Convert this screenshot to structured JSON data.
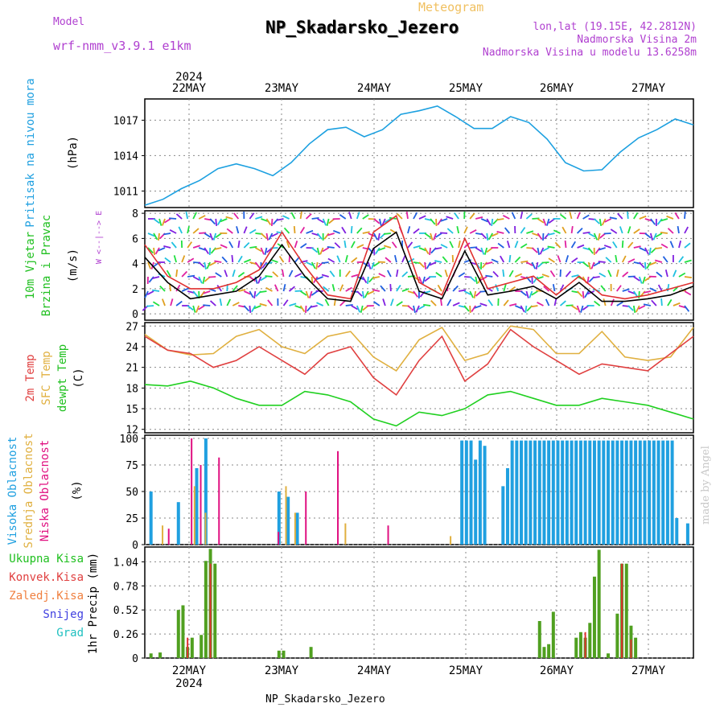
{
  "header": {
    "meteogram": "Meteogram",
    "title": "NP_Skadarsko_Jezero",
    "model_label": "Model",
    "model_name": "wrf-nmm_v3.9.1 e1km",
    "lonlat": "lon,lat (19.15E, 42.2812N)",
    "elevation": "Nadmorska Visina 2m",
    "model_elevation": "Nadmorska Visina u modelu 13.6258m"
  },
  "footer": {
    "station": "NP_Skadarsko_Jezero",
    "watermark": "made by Angel"
  },
  "colors": {
    "pressure": "#1ca0e0",
    "wind_speed": "#000000",
    "gust": "#e03030",
    "temp2m": "#e04040",
    "sfc_temp": "#e0b040",
    "dewpt": "#20d020",
    "high_cloud": "#20a0e0",
    "mid_cloud": "#e0b040",
    "low_cloud": "#e01080",
    "total_precip": "#50a020",
    "conv_precip": "#e03030"
  },
  "chart_data": [
    {
      "type": "line",
      "panel": "pressure",
      "title": "",
      "year_label": "2024",
      "day_labels": [
        "22MAY",
        "23MAY",
        "24MAY",
        "25MAY",
        "26MAY",
        "27MAY"
      ],
      "ylabel": [
        "Pritisak na nivou mora",
        "(hPa)"
      ],
      "yticks": [
        1011,
        1014,
        1017
      ],
      "ylim": [
        1009.6,
        1018.8
      ],
      "x_days": [
        0.0,
        0.2,
        0.4,
        0.6,
        0.8,
        1.0,
        1.2,
        1.4,
        1.6,
        1.8,
        2.0,
        2.2,
        2.4,
        2.6,
        2.8,
        3.0,
        3.2,
        3.4,
        3.6,
        3.8,
        4.0,
        4.2,
        4.4,
        4.6,
        4.8,
        5.0,
        5.2,
        5.4,
        5.6,
        5.8,
        6.0
      ],
      "series": [
        {
          "values": [
            1009.8,
            1010.3,
            1011.2,
            1011.9,
            1012.9,
            1013.3,
            1012.9,
            1012.3,
            1013.4,
            1015.0,
            1016.2,
            1016.4,
            1015.6,
            1016.2,
            1017.5,
            1017.8,
            1018.2,
            1017.3,
            1016.3,
            1016.3,
            1017.3,
            1016.8,
            1015.4,
            1013.4,
            1012.7,
            1012.8,
            1014.3,
            1015.5,
            1016.2,
            1017.1,
            1016.6
          ]
        }
      ]
    },
    {
      "type": "line",
      "panel": "wind",
      "ylabel": [
        "10m Vjetar",
        "Brzina i Pravac",
        "(m/s)"
      ],
      "compass": "W <--|--> E",
      "yticks": [
        0,
        2,
        4,
        6,
        8
      ],
      "ylim": [
        -0.5,
        8.2
      ],
      "x_days": [
        0.0,
        0.25,
        0.5,
        0.75,
        1.0,
        1.25,
        1.5,
        1.75,
        2.0,
        2.25,
        2.5,
        2.75,
        3.0,
        3.25,
        3.5,
        3.75,
        4.0,
        4.25,
        4.5,
        4.75,
        5.0,
        5.25,
        5.5,
        5.75,
        6.0
      ],
      "series": [
        {
          "name": "",
          "values": [
            4.5,
            2.5,
            1.2,
            1.5,
            1.8,
            3.0,
            5.5,
            3.0,
            1.2,
            1.0,
            5.2,
            6.5,
            1.8,
            1.2,
            5.0,
            1.5,
            1.8,
            2.2,
            1.2,
            2.5,
            1.0,
            1.0,
            1.2,
            1.5,
            2.2
          ]
        },
        {
          "name": "",
          "values": [
            5.5,
            3.0,
            2.0,
            2.0,
            2.5,
            3.5,
            6.5,
            3.8,
            1.5,
            1.2,
            6.5,
            7.8,
            2.5,
            1.5,
            6.0,
            2.0,
            2.5,
            3.0,
            1.5,
            3.0,
            1.5,
            1.2,
            1.5,
            2.0,
            2.5
          ]
        }
      ]
    },
    {
      "type": "line",
      "panel": "temperature",
      "ylabel": [
        "2m Temp",
        "SFC Temp",
        "dewpt Temp",
        "(C)"
      ],
      "yticks": [
        12,
        15,
        18,
        21,
        24,
        27
      ],
      "ylim": [
        11.5,
        27.5
      ],
      "x_days": [
        0.0,
        0.25,
        0.5,
        0.75,
        1.0,
        1.25,
        1.5,
        1.75,
        2.0,
        2.25,
        2.5,
        2.75,
        3.0,
        3.25,
        3.5,
        3.75,
        4.0,
        4.25,
        4.5,
        4.75,
        5.0,
        5.25,
        5.5,
        5.75,
        6.0
      ],
      "series": [
        {
          "name": "2m Temp",
          "values": [
            25.5,
            23.5,
            23.0,
            21.0,
            22.0,
            24.0,
            22.0,
            20.0,
            23.0,
            24.0,
            19.5,
            17.0,
            22.0,
            25.5,
            19.0,
            21.5,
            26.5,
            24.0,
            22.0,
            20.0,
            21.5,
            21.0,
            20.5,
            23.0,
            25.5
          ]
        },
        {
          "name": "SFC Temp",
          "values": [
            25.8,
            23.5,
            22.8,
            23.0,
            25.5,
            26.5,
            24.0,
            23.0,
            25.5,
            26.2,
            22.5,
            20.5,
            25.0,
            26.8,
            22.0,
            23.0,
            27.0,
            26.5,
            23.0,
            23.0,
            26.2,
            22.5,
            22.0,
            22.5,
            26.8
          ]
        },
        {
          "name": "dewpt Temp",
          "values": [
            18.5,
            18.3,
            19.0,
            18.0,
            16.5,
            15.5,
            15.5,
            17.5,
            17.0,
            16.0,
            13.5,
            12.5,
            14.5,
            14.0,
            15.0,
            17.0,
            17.5,
            16.5,
            15.5,
            15.5,
            16.5,
            16.0,
            15.5,
            14.5,
            13.5
          ]
        }
      ]
    },
    {
      "type": "bar",
      "panel": "clouds",
      "ylabel": [
        "Visoka Oblacnost",
        "Srednja Oblacnost",
        "Niska Oblacnost",
        "(%)"
      ],
      "yticks": [
        0,
        25,
        50,
        75,
        100
      ],
      "ylim": [
        0,
        103
      ],
      "series": [
        {
          "name": "Visoka Oblacnost",
          "points": [
            [
              0.05,
              50
            ],
            [
              0.35,
              40
            ],
            [
              0.55,
              72
            ],
            [
              0.65,
              100
            ],
            [
              1.45,
              50
            ],
            [
              1.55,
              45
            ],
            [
              1.65,
              30
            ],
            [
              3.45,
              98
            ],
            [
              3.5,
              98
            ],
            [
              3.55,
              98
            ],
            [
              3.6,
              80
            ],
            [
              3.65,
              98
            ],
            [
              3.7,
              93
            ],
            [
              3.9,
              55
            ],
            [
              3.95,
              72
            ],
            [
              4.0,
              98
            ],
            [
              4.05,
              98
            ],
            [
              4.1,
              98
            ],
            [
              4.15,
              98
            ],
            [
              4.2,
              98
            ],
            [
              4.25,
              98
            ],
            [
              4.3,
              98
            ],
            [
              4.35,
              98
            ],
            [
              4.4,
              98
            ],
            [
              4.45,
              98
            ],
            [
              4.5,
              98
            ],
            [
              4.55,
              98
            ],
            [
              4.6,
              98
            ],
            [
              4.65,
              98
            ],
            [
              4.7,
              98
            ],
            [
              4.75,
              98
            ],
            [
              4.8,
              98
            ],
            [
              4.85,
              98
            ],
            [
              4.9,
              98
            ],
            [
              4.95,
              98
            ],
            [
              5.0,
              98
            ],
            [
              5.05,
              98
            ],
            [
              5.1,
              98
            ],
            [
              5.15,
              98
            ],
            [
              5.2,
              98
            ],
            [
              5.25,
              98
            ],
            [
              5.3,
              98
            ],
            [
              5.35,
              98
            ],
            [
              5.4,
              98
            ],
            [
              5.45,
              98
            ],
            [
              5.5,
              98
            ],
            [
              5.55,
              98
            ],
            [
              5.6,
              98
            ],
            [
              5.65,
              98
            ],
            [
              5.7,
              98
            ],
            [
              5.75,
              98
            ],
            [
              5.8,
              25
            ],
            [
              5.92,
              20
            ]
          ]
        },
        {
          "name": "Srednja Oblacnost",
          "points": [
            [
              0.15,
              18
            ],
            [
              0.5,
              55
            ],
            [
              0.62,
              30
            ],
            [
              1.5,
              55
            ],
            [
              1.6,
              30
            ],
            [
              2.15,
              20
            ],
            [
              3.3,
              8
            ]
          ]
        },
        {
          "name": "Niska Oblacnost",
          "points": [
            [
              0.2,
              15
            ],
            [
              0.45,
              100
            ],
            [
              0.55,
              75
            ],
            [
              0.75,
              82
            ],
            [
              1.4,
              12
            ],
            [
              1.7,
              50
            ],
            [
              2.05,
              88
            ],
            [
              2.6,
              18
            ]
          ]
        }
      ]
    },
    {
      "type": "bar",
      "panel": "precip",
      "legend": [
        "Ukupna Kisa",
        "Konvek.Kisa",
        "Zaledj.Kisa",
        "Snijeg",
        "Grad"
      ],
      "ylabel": [
        "1hr Precip (mm)"
      ],
      "yticks": [
        0,
        0.26,
        0.52,
        0.78,
        1.04
      ],
      "ylim": [
        0,
        1.2
      ],
      "series": [
        {
          "name": "Ukupna Kisa",
          "points": [
            [
              0.05,
              0.05
            ],
            [
              0.15,
              0.06
            ],
            [
              0.35,
              0.52
            ],
            [
              0.4,
              0.57
            ],
            [
              0.45,
              0.12
            ],
            [
              0.5,
              0.22
            ],
            [
              0.6,
              0.25
            ],
            [
              0.65,
              1.05
            ],
            [
              0.7,
              1.18
            ],
            [
              0.75,
              1.02
            ],
            [
              1.45,
              0.08
            ],
            [
              1.5,
              0.08
            ],
            [
              1.8,
              0.12
            ],
            [
              4.3,
              0.4
            ],
            [
              4.35,
              0.12
            ],
            [
              4.4,
              0.15
            ],
            [
              4.45,
              0.5
            ],
            [
              4.7,
              0.22
            ],
            [
              4.75,
              0.28
            ],
            [
              4.8,
              0.22
            ],
            [
              4.85,
              0.38
            ],
            [
              4.9,
              0.88
            ],
            [
              4.95,
              1.17
            ],
            [
              5.05,
              0.05
            ],
            [
              5.15,
              0.48
            ],
            [
              5.2,
              1.02
            ],
            [
              5.25,
              1.02
            ],
            [
              5.3,
              0.35
            ],
            [
              5.35,
              0.22
            ]
          ]
        },
        {
          "name": "Konvek.Kisa",
          "points": [
            [
              0.45,
              0.22
            ],
            [
              0.7,
              1.02
            ],
            [
              4.8,
              0.28
            ],
            [
              5.2,
              1.02
            ],
            [
              5.3,
              0.2
            ]
          ]
        }
      ]
    }
  ]
}
